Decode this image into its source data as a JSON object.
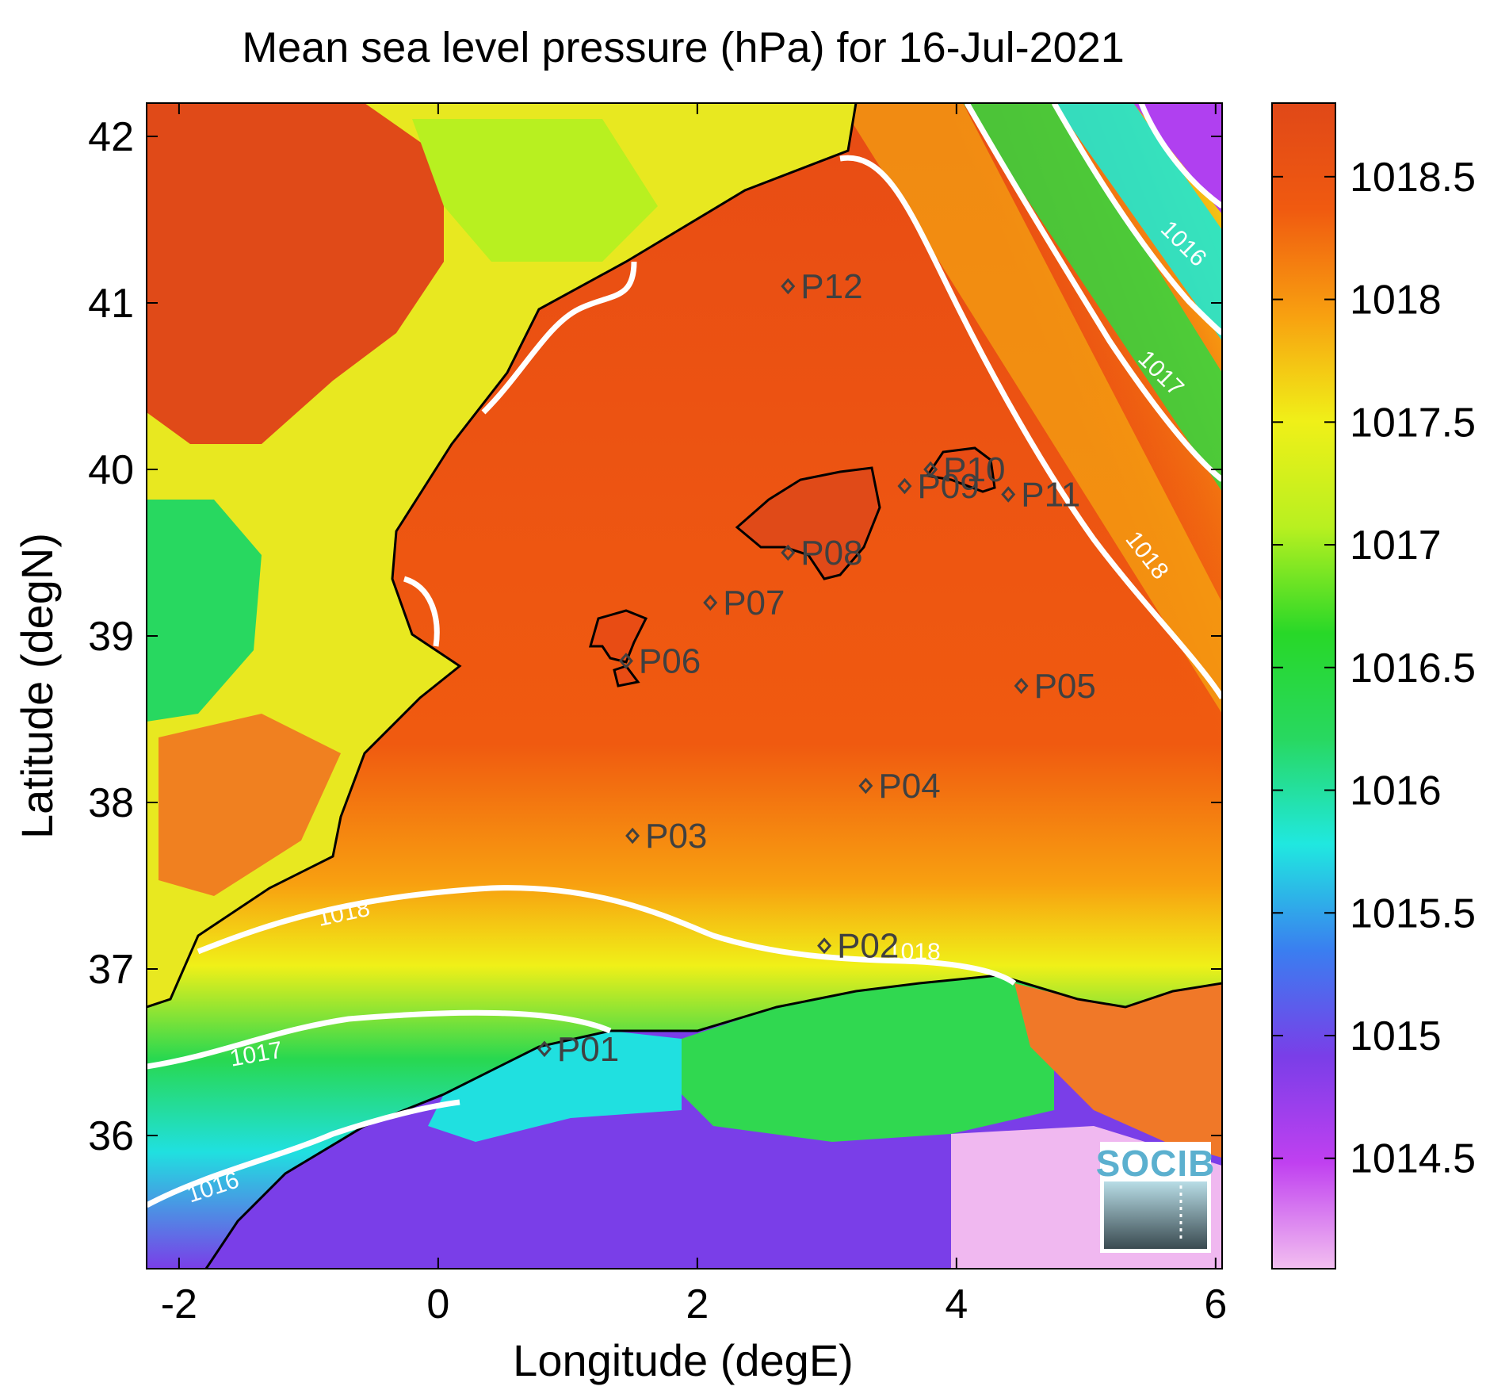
{
  "title": "Mean sea level pressure (hPa) for 16-Jul-2021",
  "xlabel": "Longitude (degE)",
  "ylabel": "Latitude (degN)",
  "x_ticks": [
    -2,
    0,
    2,
    4,
    6
  ],
  "y_ticks": [
    36,
    37,
    38,
    39,
    40,
    41,
    42
  ],
  "xlim": [
    -2.25,
    6.05
  ],
  "ylim": [
    35.2,
    42.2
  ],
  "colorbar": {
    "ticks": [
      "1014.5",
      "1015",
      "1015.5",
      "1016",
      "1016.5",
      "1017",
      "1017.5",
      "1018",
      "1018.5"
    ],
    "range": [
      1014.05,
      1018.8
    ],
    "colors": [
      "#f2bff0",
      "#c040f0",
      "#7a3ee8",
      "#3a7ef0",
      "#20e8e0",
      "#28d860",
      "#28d828",
      "#b8f020",
      "#f0f018",
      "#f8a010",
      "#f05a10",
      "#e04818"
    ]
  },
  "stations": [
    {
      "name": "P01",
      "lon": 0.82,
      "lat": 36.52
    },
    {
      "name": "P02",
      "lon": 2.98,
      "lat": 37.14
    },
    {
      "name": "P03",
      "lon": 1.5,
      "lat": 37.8
    },
    {
      "name": "P04",
      "lon": 3.3,
      "lat": 38.1
    },
    {
      "name": "P05",
      "lon": 4.5,
      "lat": 38.7
    },
    {
      "name": "P06",
      "lon": 1.45,
      "lat": 38.85
    },
    {
      "name": "P07",
      "lon": 2.1,
      "lat": 39.2
    },
    {
      "name": "P08",
      "lon": 2.7,
      "lat": 39.5
    },
    {
      "name": "P09",
      "lon": 3.6,
      "lat": 39.9
    },
    {
      "name": "P10",
      "lon": 3.8,
      "lat": 40.0
    },
    {
      "name": "P11",
      "lon": 4.4,
      "lat": 39.85
    },
    {
      "name": "P12",
      "lon": 2.7,
      "lat": 41.1
    }
  ],
  "contour_labels": [
    "1018",
    "1018",
    "1017",
    "1016",
    "1018",
    "1017",
    "1016"
  ],
  "logo": "SOCIB",
  "chart_data": {
    "type": "heatmap",
    "title": "Mean sea level pressure (hPa) for 16-Jul-2021",
    "xlabel": "Longitude (degE)",
    "ylabel": "Latitude (degN)",
    "xlim": [
      -2.25,
      6.05
    ],
    "ylim": [
      35.2,
      42.2
    ],
    "colorbar_range_hPa": [
      1014.05,
      1018.8
    ],
    "contour_levels_hPa": [
      1016,
      1017,
      1018
    ],
    "grid": false
  }
}
